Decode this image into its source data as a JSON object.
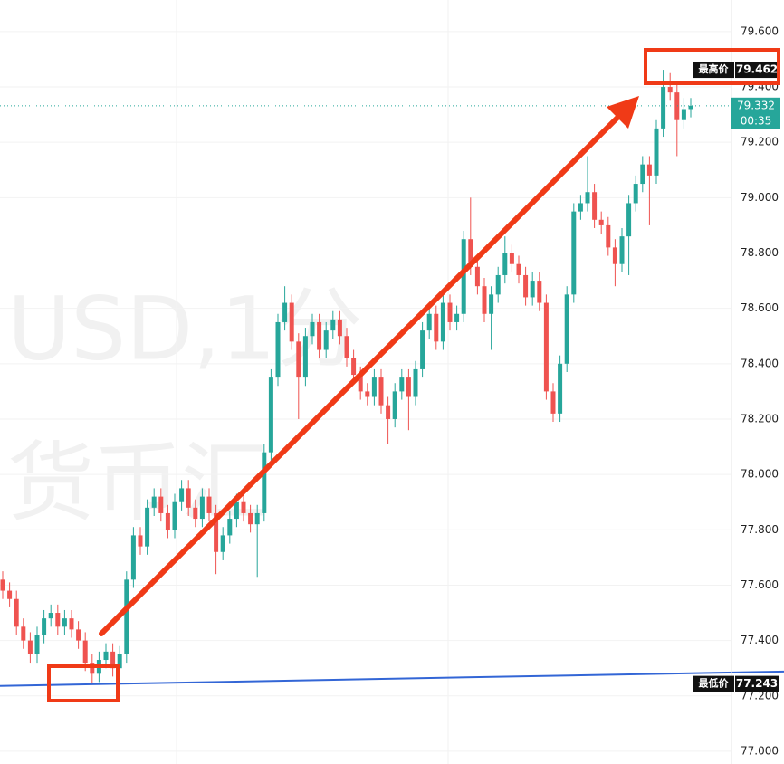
{
  "chart_data": {
    "type": "candlestick",
    "watermark": [
      "USD,1分",
      "货币汇"
    ],
    "ylim": [
      76.954,
      79.714
    ],
    "yticks": [
      {
        "value": 77,
        "label": "77.000"
      },
      {
        "value": 77.2,
        "label": "77.200"
      },
      {
        "value": 77.4,
        "label": "77.400"
      },
      {
        "value": 77.6,
        "label": "77.600"
      },
      {
        "value": 77.8,
        "label": "77.800"
      },
      {
        "value": 78,
        "label": "78.000"
      },
      {
        "value": 78.2,
        "label": "78.200"
      },
      {
        "value": 78.4,
        "label": "78.400"
      },
      {
        "value": 78.6,
        "label": "78.600"
      },
      {
        "value": 78.8,
        "label": "78.800"
      },
      {
        "value": 79,
        "label": "79.000"
      },
      {
        "value": 79.2,
        "label": "79.200"
      },
      {
        "value": 79.4,
        "label": "79.400"
      },
      {
        "value": 79.6,
        "label": "79.600"
      }
    ],
    "grid": true,
    "up_color": "#26a69a",
    "down_color": "#ef5350",
    "open": [
      77.62,
      77.58,
      77.55,
      77.45,
      77.4,
      77.35,
      77.42,
      77.48,
      77.5,
      77.45,
      77.48,
      77.44,
      77.4,
      77.32,
      77.28,
      77.33,
      77.36,
      77.3,
      77.35,
      77.62,
      77.78,
      77.74,
      77.88,
      77.92,
      77.86,
      77.8,
      77.9,
      77.95,
      77.88,
      77.84,
      77.92,
      77.86,
      77.72,
      77.78,
      77.84,
      77.9,
      77.86,
      77.82,
      77.86,
      78.08,
      78.35,
      78.55,
      78.62,
      78.48,
      78.35,
      78.5,
      78.55,
      78.45,
      78.52,
      78.56,
      78.5,
      78.42,
      78.36,
      78.3,
      78.28,
      78.35,
      78.25,
      78.2,
      78.3,
      78.35,
      78.28,
      78.38,
      78.52,
      78.58,
      78.48,
      78.62,
      78.55,
      78.58,
      78.85,
      78.75,
      78.68,
      78.58,
      78.65,
      78.72,
      78.8,
      78.76,
      78.72,
      78.64,
      78.7,
      78.62,
      78.3,
      78.22,
      78.4,
      78.65,
      78.95,
      78.98,
      79.02,
      78.92,
      78.9,
      78.82,
      78.76,
      78.86,
      78.98,
      79.05,
      79.12,
      79.08,
      79.25,
      79.4,
      79.38,
      79.28,
      79.32
    ],
    "high": [
      77.65,
      77.61,
      77.58,
      77.48,
      77.43,
      77.45,
      77.51,
      77.53,
      77.53,
      77.51,
      77.51,
      77.47,
      77.43,
      77.35,
      77.36,
      77.39,
      77.39,
      77.38,
      77.65,
      77.81,
      77.81,
      77.91,
      77.95,
      77.95,
      77.89,
      77.93,
      77.98,
      77.98,
      77.91,
      77.95,
      77.95,
      77.89,
      77.81,
      77.87,
      77.93,
      77.93,
      77.89,
      77.89,
      78.11,
      78.38,
      78.58,
      78.68,
      78.65,
      78.51,
      78.53,
      78.58,
      78.58,
      78.55,
      78.59,
      78.59,
      78.53,
      78.45,
      78.39,
      78.33,
      78.38,
      78.38,
      78.28,
      78.33,
      78.38,
      78.38,
      78.41,
      78.55,
      78.61,
      78.61,
      78.65,
      78.65,
      78.61,
      78.88,
      79.0,
      78.78,
      78.71,
      78.68,
      78.75,
      78.86,
      78.83,
      78.79,
      78.75,
      78.73,
      78.73,
      78.65,
      78.33,
      78.43,
      78.68,
      78.98,
      79.01,
      79.15,
      79.05,
      78.95,
      78.93,
      78.85,
      78.89,
      79.01,
      79.08,
      79.15,
      79.15,
      79.28,
      79.462,
      79.45,
      79.41,
      79.36,
      79.36
    ],
    "low": [
      77.55,
      77.52,
      77.42,
      77.37,
      77.32,
      77.32,
      77.39,
      77.45,
      77.42,
      77.42,
      77.41,
      77.37,
      77.29,
      77.243,
      77.25,
      77.3,
      77.27,
      77.27,
      77.32,
      77.59,
      77.71,
      77.71,
      77.85,
      77.83,
      77.77,
      77.77,
      77.87,
      77.85,
      77.81,
      77.81,
      77.83,
      77.64,
      77.69,
      77.75,
      77.81,
      77.83,
      77.79,
      77.63,
      77.83,
      78.05,
      78.32,
      78.52,
      78.45,
      78.2,
      78.32,
      78.47,
      78.42,
      78.42,
      78.49,
      78.47,
      78.39,
      78.33,
      78.27,
      78.25,
      78.25,
      78.22,
      78.11,
      78.17,
      78.27,
      78.16,
      78.25,
      78.35,
      78.49,
      78.45,
      78.45,
      78.52,
      78.52,
      78.55,
      78.72,
      78.65,
      78.55,
      78.45,
      78.62,
      78.69,
      78.73,
      78.69,
      78.61,
      78.61,
      78.59,
      78.27,
      78.19,
      78.19,
      78.37,
      78.62,
      78.92,
      78.95,
      78.89,
      78.87,
      78.79,
      78.68,
      78.73,
      78.72,
      78.95,
      79.02,
      78.9,
      79.05,
      79.22,
      79.35,
      79.15,
      79.25,
      79.29
    ],
    "close": [
      77.58,
      77.55,
      77.45,
      77.4,
      77.35,
      77.42,
      77.48,
      77.5,
      77.45,
      77.48,
      77.44,
      77.4,
      77.32,
      77.28,
      77.33,
      77.36,
      77.3,
      77.35,
      77.62,
      77.78,
      77.74,
      77.88,
      77.92,
      77.86,
      77.8,
      77.9,
      77.95,
      77.88,
      77.84,
      77.92,
      77.86,
      77.72,
      77.78,
      77.84,
      77.9,
      77.86,
      77.82,
      77.86,
      78.08,
      78.35,
      78.55,
      78.62,
      78.48,
      78.35,
      78.5,
      78.55,
      78.45,
      78.52,
      78.56,
      78.5,
      78.42,
      78.36,
      78.3,
      78.28,
      78.35,
      78.25,
      78.2,
      78.3,
      78.35,
      78.28,
      78.38,
      78.52,
      78.58,
      78.48,
      78.62,
      78.55,
      78.58,
      78.85,
      78.75,
      78.68,
      78.58,
      78.65,
      78.72,
      78.8,
      78.76,
      78.72,
      78.64,
      78.7,
      78.62,
      78.3,
      78.22,
      78.4,
      78.65,
      78.95,
      78.98,
      79.02,
      78.92,
      78.9,
      78.82,
      78.76,
      78.86,
      78.98,
      79.05,
      79.12,
      79.08,
      79.25,
      79.4,
      79.38,
      79.28,
      79.32,
      79.332
    ],
    "trend_line": {
      "start": 77.236,
      "end": 77.288,
      "color": "#3366d6"
    },
    "highest": {
      "text": "最高价",
      "value": 79.462
    },
    "lowest": {
      "text": "最低价",
      "value": 77.243
    },
    "current": {
      "value": 79.332,
      "countdown": "00:35",
      "color": "#26a69a"
    }
  }
}
